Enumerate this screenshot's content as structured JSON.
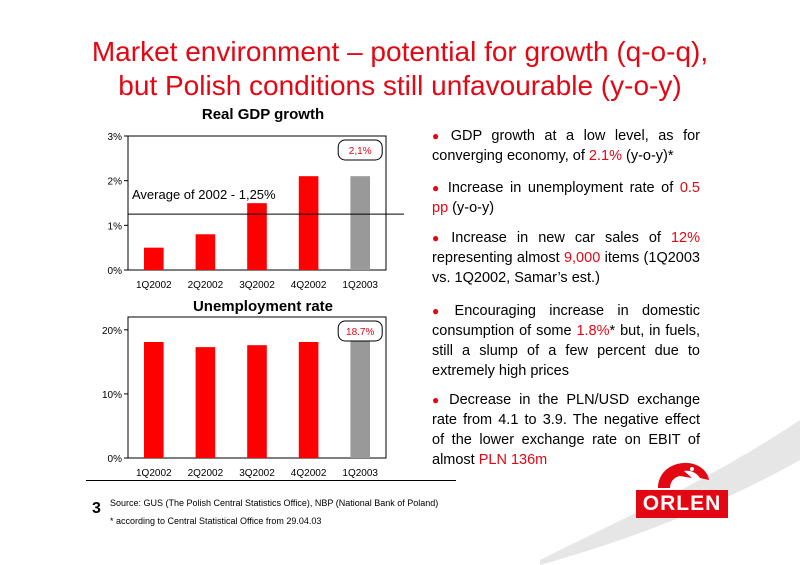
{
  "title": {
    "line1": "Market environment – potential for growth (q-o-q),",
    "line2": "but Polish conditions still unfavourable (y-o-y)"
  },
  "colors": {
    "accent": "#e30613",
    "bar_gray": "#999999",
    "text": "#000000"
  },
  "chart_data": [
    {
      "type": "bar",
      "title": "Real GDP growth",
      "categories": [
        "1Q2002",
        "2Q2002",
        "3Q2002",
        "4Q2002",
        "1Q2003"
      ],
      "values": [
        0.5,
        0.8,
        1.6,
        2.1,
        2.1
      ],
      "bar_colors": [
        "#ff0000",
        "#ff0000",
        "#ff0000",
        "#ff0000",
        "#999999"
      ],
      "ylim": [
        0,
        3
      ],
      "ytick_labels": [
        "0%",
        "1%",
        "2%",
        "3%"
      ],
      "reference_line": {
        "value": 1.25,
        "label": "Average of 2002 - 1,25%"
      },
      "callout": "2,1%",
      "grid": false
    },
    {
      "type": "bar",
      "title": "Unemployment rate",
      "categories": [
        "1Q2002",
        "2Q2002",
        "3Q2002",
        "4Q2002",
        "1Q2003"
      ],
      "values": [
        18.1,
        17.3,
        17.6,
        18.1,
        18.7
      ],
      "bar_colors": [
        "#ff0000",
        "#ff0000",
        "#ff0000",
        "#ff0000",
        "#999999"
      ],
      "ylim": [
        0,
        22
      ],
      "ytick_labels": [
        "0%",
        "10%",
        "20%"
      ],
      "ytick_values": [
        0,
        10,
        20
      ],
      "callout": "18.7%",
      "grid": false
    }
  ],
  "bullets": [
    {
      "parts": [
        {
          "t": "GDP growth at a low level, as for converging economy, of ",
          "hl": false
        },
        {
          "t": "2.1%",
          "hl": true
        },
        {
          "t": " (y-o-y)*",
          "hl": false
        }
      ]
    },
    {
      "parts": [
        {
          "t": "Increase in unemployment rate of ",
          "hl": false
        },
        {
          "t": "0.5 pp",
          "hl": true
        },
        {
          "t": " (y-o-y)",
          "hl": false
        }
      ]
    },
    {
      "parts": [
        {
          "t": "Increase in new car sales of ",
          "hl": false
        },
        {
          "t": "12%",
          "hl": true
        },
        {
          "t": " representing almost ",
          "hl": false
        },
        {
          "t": "9,000",
          "hl": true
        },
        {
          "t": " items (1Q2003 vs. 1Q2002, Samar’s est.)",
          "hl": false
        }
      ]
    },
    {
      "parts": [
        {
          "t": "Encouraging increase in domestic consumption of some ",
          "hl": false
        },
        {
          "t": "1.8%",
          "hl": true
        },
        {
          "t": "* but, in fuels, still a slump of a few percent due to extremely high prices",
          "hl": false
        }
      ]
    },
    {
      "parts": [
        {
          "t": "Decrease in the PLN/USD exchange rate from 4.1 to 3.9. The negative effect of the lower exchange rate on EBIT of almost ",
          "hl": false
        },
        {
          "t": "PLN 136m",
          "hl": true
        }
      ]
    }
  ],
  "footer": {
    "page_number": "3",
    "source": "Source: GUS (The Polish Central Statistics Office), NBP (National Bank of Poland)",
    "note": "* according to Central Statistical Office from 29.04.03"
  },
  "logo": {
    "text": "ORLEN",
    "icon": "eagle-head-icon"
  }
}
